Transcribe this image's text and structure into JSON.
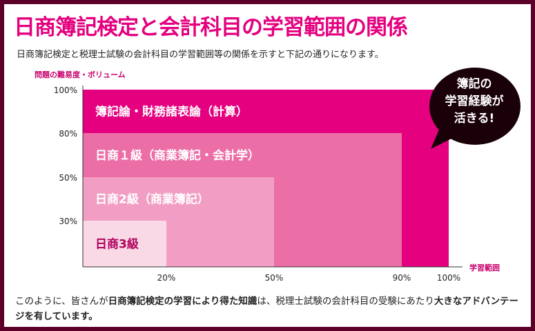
{
  "title": "日商簿記検定と会計科目の学習範囲の関係",
  "subtitle": "日商簿記検定と税理士試験の会計科目の学習範囲等の関係を示すと下記の通りになります。",
  "callout": {
    "lines": [
      "簿記の",
      "学習経験が",
      "活きる!"
    ]
  },
  "chart_data": {
    "type": "nested-area",
    "ylabel": "問題の難易度・ボリューム",
    "xlabel": "学習範囲",
    "x_ticks": [
      "20%",
      "50%",
      "90%",
      "100%"
    ],
    "y_ticks": [
      "30%",
      "50%",
      "80%",
      "100%"
    ],
    "series": [
      {
        "name": "簿記論・財務諸表論（計算）",
        "x": 100,
        "y": 100,
        "color": "#e4007f"
      },
      {
        "name": "日商１級（商業簿記・会計学）",
        "x": 90,
        "y": 80,
        "color": "#ec6ea6"
      },
      {
        "name": "日商2級（商業簿記）",
        "x": 50,
        "y": 50,
        "color": "#f29ec4"
      },
      {
        "name": "日商3級",
        "x": 20,
        "y": 30,
        "color": "#f9d9e6"
      }
    ]
  },
  "footer": {
    "p1": "このように、皆さんが",
    "b1": "日商簿記検定の学習により得た知識",
    "p2": "は、税理士試験の会計科目の受験にあたり",
    "b2": "大きなアドバンテージを有しています。"
  }
}
